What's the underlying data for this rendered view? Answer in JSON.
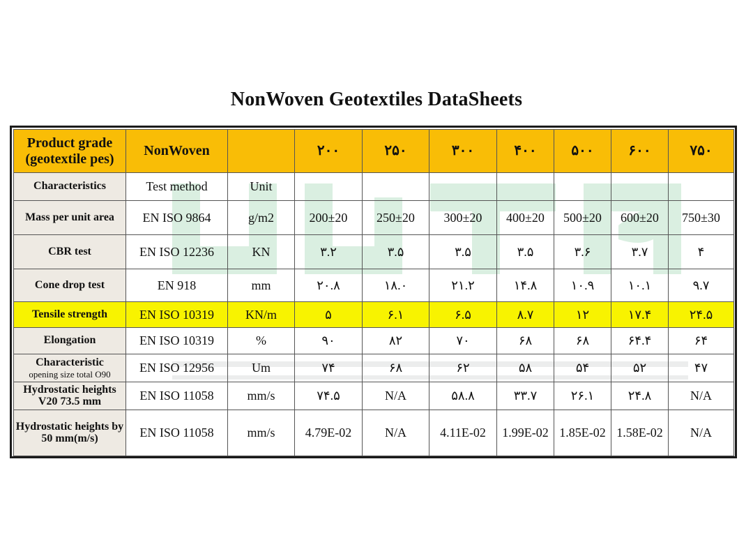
{
  "title": "NonWoven Geotextiles DataSheets",
  "colors": {
    "header_bg": "#f9bd06",
    "label_bg": "#eeeae3",
    "highlight_bg": "#f8f300",
    "border": "#1b1b1b"
  },
  "header": {
    "label": "Product grade (geotextile pes)",
    "method": "NonWoven",
    "unit": "",
    "grades": [
      "۲۰۰",
      "۲۵۰",
      "۳۰۰",
      "۴۰۰",
      "۵۰۰",
      "۶۰۰",
      "۷۵۰"
    ]
  },
  "rows": [
    {
      "label": "Characteristics",
      "sub": "",
      "method": "Test method",
      "unit": "Unit",
      "values": [
        "",
        "",
        "",
        "",
        "",
        "",
        ""
      ]
    },
    {
      "label": "Mass per unit area",
      "sub": "",
      "method": "EN ISO 9864",
      "unit": "g/m2",
      "values": [
        "200±20",
        "250±20",
        "300±20",
        "400±20",
        "500±20",
        "600±20",
        "750±30"
      ]
    },
    {
      "label": "CBR test",
      "sub": "",
      "method": "EN ISO 12236",
      "unit": "KN",
      "values": [
        "۳.۲",
        "۳.۵",
        "۳.۵",
        "۳.۵",
        "۳.۶",
        "۳.۷",
        "۴"
      ]
    },
    {
      "label": "Cone drop test",
      "sub": "",
      "method": "EN 918",
      "unit": "mm",
      "values": [
        "۲۰.۸",
        "۱۸.۰",
        "۲۱.۲",
        "۱۴.۸",
        "۱۰.۹",
        "۱۰.۱",
        "۹.۷"
      ]
    },
    {
      "label": "Tensile strength",
      "sub": "",
      "method": "EN ISO 10319",
      "unit": "KN/m",
      "values": [
        "۵",
        "۶.۱",
        "۶.۵",
        "۸.۷",
        "۱۲",
        "۱۷.۴",
        "۲۴.۵"
      ]
    },
    {
      "label": "Elongation",
      "sub": "",
      "method": "EN ISO 10319",
      "unit": "%",
      "values": [
        "۹۰",
        "۸۲",
        "۷۰",
        "۶۸",
        "۶۸",
        "۶۴.۴",
        "۶۴"
      ]
    },
    {
      "label": "Characteristic",
      "sub": "opening size total O90",
      "method": "EN ISO 12956",
      "unit": "Um",
      "values": [
        "۷۴",
        "۶۸",
        "۶۲",
        "۵۸",
        "۵۴",
        "۵۲",
        "۴۷"
      ]
    },
    {
      "label": "Hydrostatic heights V20 73.5 mm",
      "sub": "",
      "method": "EN ISO 11058",
      "unit": "mm/s",
      "values": [
        "۷۴.۵",
        "N/A",
        "۵۸.۸",
        "۳۳.۷",
        "۲۶.۱",
        "۲۴.۸",
        "N/A"
      ]
    },
    {
      "label": "Hydrostatic heights by 50 mm(m/s)",
      "sub": "",
      "method": "EN ISO 11058",
      "unit": "mm/s",
      "values": [
        "4.79E-02",
        "N/A",
        "4.11E-02",
        "1.99E-02",
        "1.85E-02",
        "1.58E-02",
        "N/A"
      ]
    }
  ]
}
